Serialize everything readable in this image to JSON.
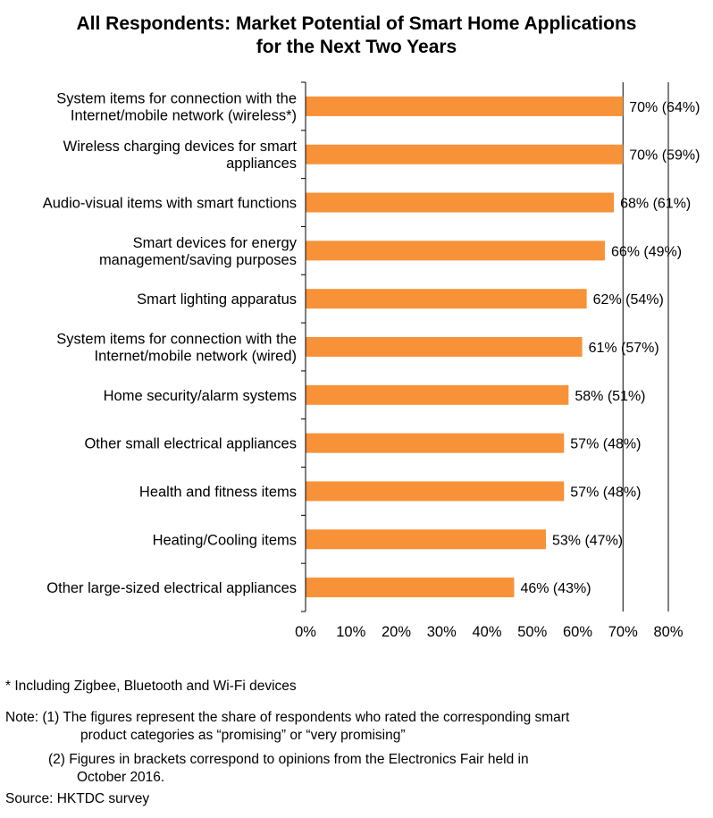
{
  "chart_data": {
    "type": "bar",
    "orientation": "horizontal",
    "title_lines": [
      "All Respondents: Market Potential of Smart Home Applications",
      "for the Next Two Years"
    ],
    "categories": [
      [
        "System items for connection with the",
        "Internet/mobile network (wireless*)"
      ],
      [
        "Wireless charging devices for smart",
        "appliances"
      ],
      [
        "Audio-visual items with smart functions"
      ],
      [
        "Smart devices for energy",
        "management/saving purposes"
      ],
      [
        "Smart lighting apparatus"
      ],
      [
        "System items for connection with the",
        "Internet/mobile network (wired)"
      ],
      [
        "Home security/alarm systems"
      ],
      [
        "Other small electrical appliances"
      ],
      [
        "Health and fitness items"
      ],
      [
        "Heating/Cooling items"
      ],
      [
        "Other large-sized electrical appliances"
      ]
    ],
    "values": [
      70,
      70,
      68,
      66,
      62,
      61,
      58,
      57,
      57,
      53,
      46
    ],
    "bracket_values": [
      64,
      59,
      61,
      49,
      54,
      57,
      51,
      48,
      48,
      47,
      43
    ],
    "data_labels": [
      "70% (64%)",
      "70% (59%)",
      "68% (61%)",
      "66% (49%)",
      "62% (54%)",
      "61% (57%)",
      "58% (51%)",
      "57% (48%)",
      "57% (48%)",
      "53% (47%)",
      "46% (43%)"
    ],
    "xlim": [
      0,
      80
    ],
    "xticks": [
      0,
      10,
      20,
      30,
      40,
      50,
      60,
      70,
      80
    ],
    "xtick_labels": [
      "0%",
      "10%",
      "20%",
      "30%",
      "40%",
      "50%",
      "60%",
      "70%",
      "80%"
    ],
    "grid": "vertical gridlines at 70% and 80% visible",
    "bar_color": "#F79239",
    "axis_color": "#000000"
  },
  "notes": {
    "footnote": "* Including Zigbee, Bluetooth and Wi-Fi devices",
    "note1_line1": "Note: (1)  The figures represent the share of respondents who rated the corresponding smart",
    "note1_line2": "product categories as “promising” or “very promising”",
    "note2_line1": "(2)  Figures in brackets correspond to opinions from the Electronics Fair held in",
    "note2_line2": "October 2016.",
    "source": "Source: HKTDC survey"
  }
}
